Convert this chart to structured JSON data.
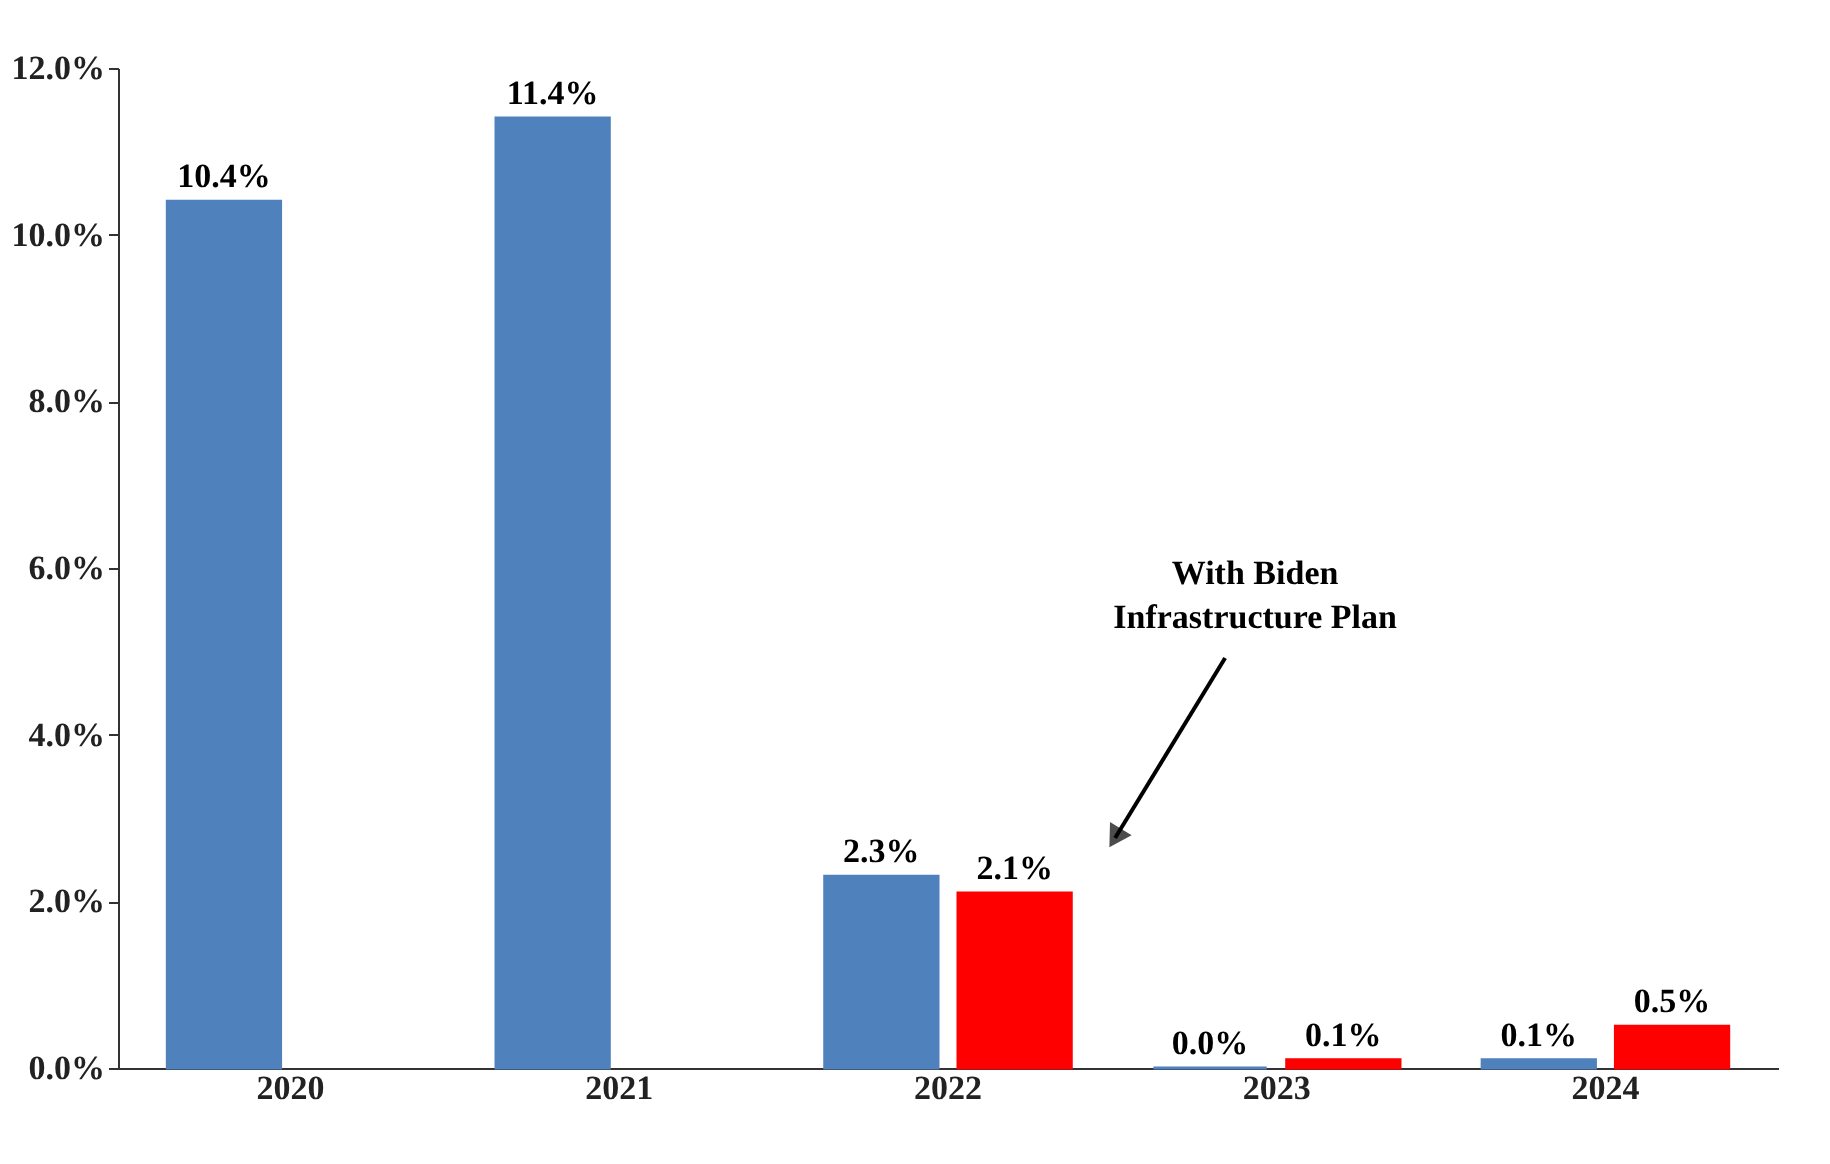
{
  "chart_data": {
    "type": "bar",
    "categories": [
      "2020",
      "2021",
      "2022",
      "2023",
      "2024"
    ],
    "series": [
      {
        "color": "#4f81bd",
        "values": [
          10.4,
          11.4,
          2.3,
          0.0,
          0.1
        ],
        "value_labels": [
          "10.4%",
          "11.4%",
          "2.3%",
          "0.0%",
          "0.1%"
        ]
      },
      {
        "color": "#ff0000",
        "values": [
          null,
          null,
          2.1,
          0.1,
          0.5
        ],
        "value_labels": [
          null,
          null,
          "2.1%",
          "0.1%",
          "0.5%"
        ]
      }
    ],
    "ylim": [
      0,
      12
    ],
    "yticks": [
      {
        "value": 0,
        "label": "0.0%"
      },
      {
        "value": 2,
        "label": "2.0%"
      },
      {
        "value": 4,
        "label": "4.0%"
      },
      {
        "value": 6,
        "label": "6.0%"
      },
      {
        "value": 8,
        "label": "8.0%"
      },
      {
        "value": 10,
        "label": "10.0%"
      },
      {
        "value": 12,
        "label": "12.0%"
      }
    ],
    "annotations": [
      "With Biden\nInfrastructure Plan"
    ],
    "grid": false,
    "legend": false
  }
}
